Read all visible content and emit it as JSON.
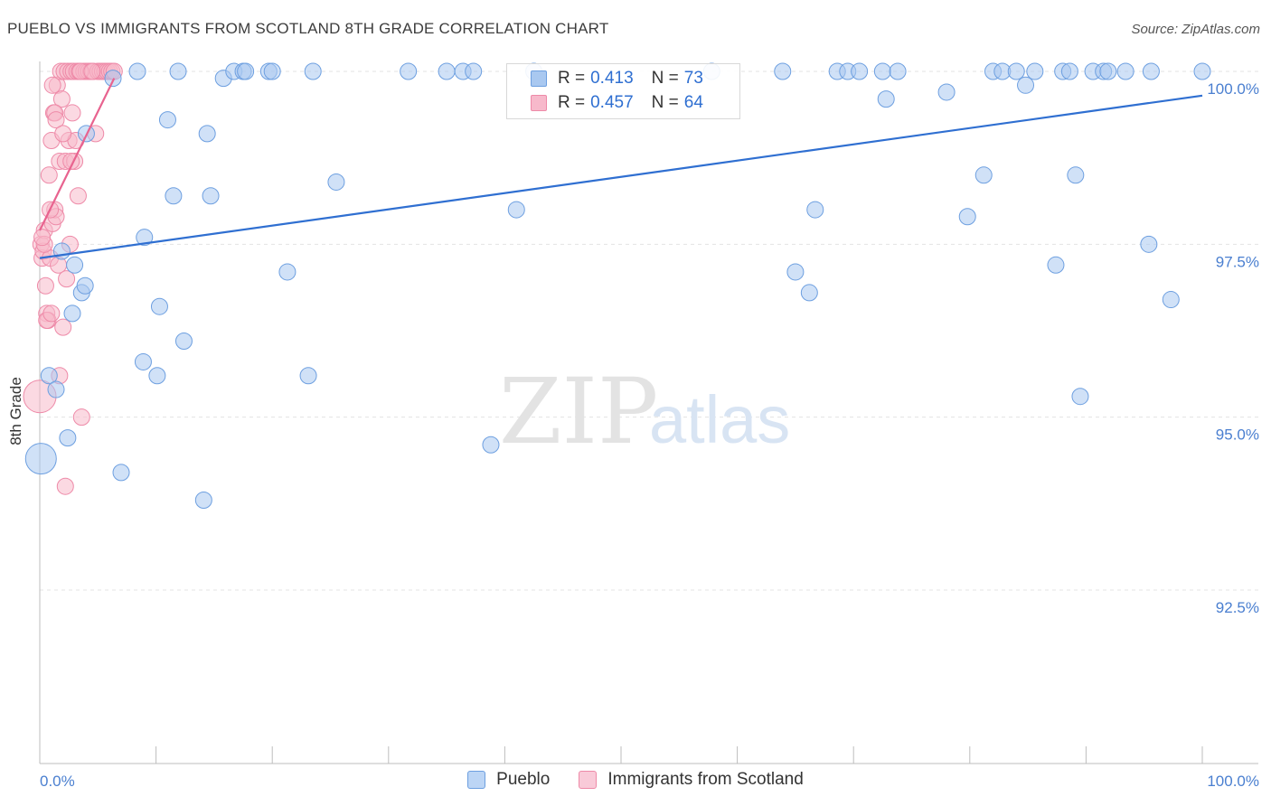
{
  "title": "PUEBLO VS IMMIGRANTS FROM SCOTLAND 8TH GRADE CORRELATION CHART",
  "source": "Source: ZipAtlas.com",
  "watermark": {
    "zip": "ZIP",
    "atlas": "atlas"
  },
  "legend": {
    "r_label": "R =",
    "n_label": "N =",
    "pueblo": {
      "r": "0.413",
      "n": "73"
    },
    "scotland": {
      "r": "0.457",
      "n": "64"
    }
  },
  "colors": {
    "pueblo_fill": "#a9c8f0",
    "pueblo_stroke": "#6d9fe0",
    "pueblo_line": "#2f6fd1",
    "scotland_fill": "#f7b9cb",
    "scotland_stroke": "#ee8aa8",
    "scotland_line": "#e8638f",
    "axis_label": "#4a7fd0",
    "grid": "#e3e3e3"
  },
  "chart_data": {
    "type": "scatter",
    "title": "PUEBLO VS IMMIGRANTS FROM SCOTLAND 8TH GRADE CORRELATION CHART",
    "xlabel": "",
    "ylabel": "8th Grade",
    "xlim": [
      0,
      100
    ],
    "ylim": [
      90.0,
      100.5
    ],
    "x_tick_labels": [
      "0.0%",
      "100.0%"
    ],
    "y_ticks": [
      {
        "value": 100.0,
        "label": "100.0%"
      },
      {
        "value": 97.5,
        "label": "97.5%"
      },
      {
        "value": 95.0,
        "label": "95.0%"
      },
      {
        "value": 92.5,
        "label": "92.5%"
      }
    ],
    "series": [
      {
        "name": "Pueblo",
        "trend": {
          "x0": 0,
          "y0": 97.3,
          "x1": 100,
          "y1": 99.65
        },
        "points": [
          [
            0.1,
            94.4
          ],
          [
            0.8,
            95.6
          ],
          [
            1.4,
            95.4
          ],
          [
            1.9,
            97.4
          ],
          [
            2.4,
            94.7
          ],
          [
            2.8,
            96.5
          ],
          [
            3.0,
            97.2
          ],
          [
            3.6,
            96.8
          ],
          [
            3.9,
            96.9
          ],
          [
            4.0,
            99.1
          ],
          [
            6.3,
            99.9
          ],
          [
            7.0,
            94.2
          ],
          [
            8.4,
            100.0
          ],
          [
            8.9,
            95.8
          ],
          [
            9.0,
            97.6
          ],
          [
            10.1,
            95.6
          ],
          [
            10.3,
            96.6
          ],
          [
            11.0,
            99.3
          ],
          [
            11.5,
            98.2
          ],
          [
            11.9,
            100.0
          ],
          [
            12.4,
            96.1
          ],
          [
            14.1,
            93.8
          ],
          [
            14.4,
            99.1
          ],
          [
            14.7,
            98.2
          ],
          [
            15.8,
            99.9
          ],
          [
            16.7,
            100.0
          ],
          [
            17.5,
            100.0
          ],
          [
            17.7,
            100.0
          ],
          [
            19.7,
            100.0
          ],
          [
            20.0,
            100.0
          ],
          [
            21.3,
            97.1
          ],
          [
            23.1,
            95.6
          ],
          [
            23.5,
            100.0
          ],
          [
            25.5,
            98.4
          ],
          [
            31.7,
            100.0
          ],
          [
            35.0,
            100.0
          ],
          [
            36.4,
            100.0
          ],
          [
            37.3,
            100.0
          ],
          [
            38.8,
            94.6
          ],
          [
            41.0,
            98.0
          ],
          [
            42.5,
            100.0
          ],
          [
            57.8,
            100.0
          ],
          [
            63.9,
            100.0
          ],
          [
            65.0,
            97.1
          ],
          [
            66.2,
            96.8
          ],
          [
            66.7,
            98.0
          ],
          [
            68.6,
            100.0
          ],
          [
            69.5,
            100.0
          ],
          [
            70.5,
            100.0
          ],
          [
            72.5,
            100.0
          ],
          [
            72.8,
            99.6
          ],
          [
            73.8,
            100.0
          ],
          [
            78.0,
            99.7
          ],
          [
            79.8,
            97.9
          ],
          [
            81.2,
            98.5
          ],
          [
            82.0,
            100.0
          ],
          [
            82.8,
            100.0
          ],
          [
            84.0,
            100.0
          ],
          [
            84.8,
            99.8
          ],
          [
            85.6,
            100.0
          ],
          [
            87.4,
            97.2
          ],
          [
            88.0,
            100.0
          ],
          [
            88.6,
            100.0
          ],
          [
            89.1,
            98.5
          ],
          [
            89.5,
            95.3
          ],
          [
            90.6,
            100.0
          ],
          [
            91.5,
            100.0
          ],
          [
            91.9,
            100.0
          ],
          [
            93.4,
            100.0
          ],
          [
            95.4,
            97.5
          ],
          [
            95.6,
            100.0
          ],
          [
            97.3,
            96.7
          ],
          [
            100.0,
            100.0
          ]
        ]
      },
      {
        "name": "Immigrants from Scotland",
        "trend": {
          "x0": 0,
          "y0": 97.7,
          "x1": 6.4,
          "y1": 99.9
        },
        "points": [
          [
            0.0,
            95.3
          ],
          [
            0.1,
            97.5
          ],
          [
            0.2,
            97.3
          ],
          [
            0.3,
            97.4
          ],
          [
            0.4,
            97.7
          ],
          [
            0.5,
            96.9
          ],
          [
            0.6,
            96.5
          ],
          [
            0.7,
            96.4
          ],
          [
            0.8,
            98.5
          ],
          [
            0.9,
            97.3
          ],
          [
            1.0,
            99.0
          ],
          [
            1.1,
            97.8
          ],
          [
            1.2,
            99.4
          ],
          [
            1.3,
            98.0
          ],
          [
            1.4,
            97.9
          ],
          [
            1.5,
            99.8
          ],
          [
            1.6,
            97.2
          ],
          [
            1.7,
            98.7
          ],
          [
            1.8,
            100.0
          ],
          [
            1.9,
            99.6
          ],
          [
            2.0,
            96.3
          ],
          [
            2.1,
            100.0
          ],
          [
            2.2,
            98.7
          ],
          [
            2.3,
            97.0
          ],
          [
            2.4,
            100.0
          ],
          [
            2.5,
            99.0
          ],
          [
            2.6,
            97.5
          ],
          [
            2.7,
            100.0
          ],
          [
            2.8,
            99.4
          ],
          [
            2.9,
            100.0
          ],
          [
            3.0,
            98.7
          ],
          [
            3.1,
            99.0
          ],
          [
            3.2,
            100.0
          ],
          [
            3.3,
            98.2
          ],
          [
            3.4,
            100.0
          ],
          [
            3.6,
            95.0
          ],
          [
            3.8,
            100.0
          ],
          [
            4.0,
            100.0
          ],
          [
            4.2,
            100.0
          ],
          [
            4.4,
            100.0
          ],
          [
            4.6,
            100.0
          ],
          [
            4.8,
            99.1
          ],
          [
            5.0,
            100.0
          ],
          [
            5.2,
            100.0
          ],
          [
            5.4,
            100.0
          ],
          [
            5.6,
            100.0
          ],
          [
            5.8,
            100.0
          ],
          [
            6.0,
            100.0
          ],
          [
            6.2,
            100.0
          ],
          [
            6.4,
            100.0
          ],
          [
            0.4,
            97.5
          ],
          [
            0.9,
            98.0
          ],
          [
            1.3,
            99.4
          ],
          [
            1.7,
            95.6
          ],
          [
            2.2,
            94.0
          ],
          [
            0.6,
            96.4
          ],
          [
            1.0,
            96.5
          ],
          [
            1.4,
            99.3
          ],
          [
            2.7,
            98.7
          ],
          [
            3.5,
            100.0
          ],
          [
            4.5,
            100.0
          ],
          [
            1.1,
            99.8
          ],
          [
            2.0,
            99.1
          ],
          [
            0.2,
            97.6
          ]
        ]
      }
    ]
  },
  "bottom_legend": [
    {
      "label": "Pueblo"
    },
    {
      "label": "Immigrants from Scotland"
    }
  ]
}
